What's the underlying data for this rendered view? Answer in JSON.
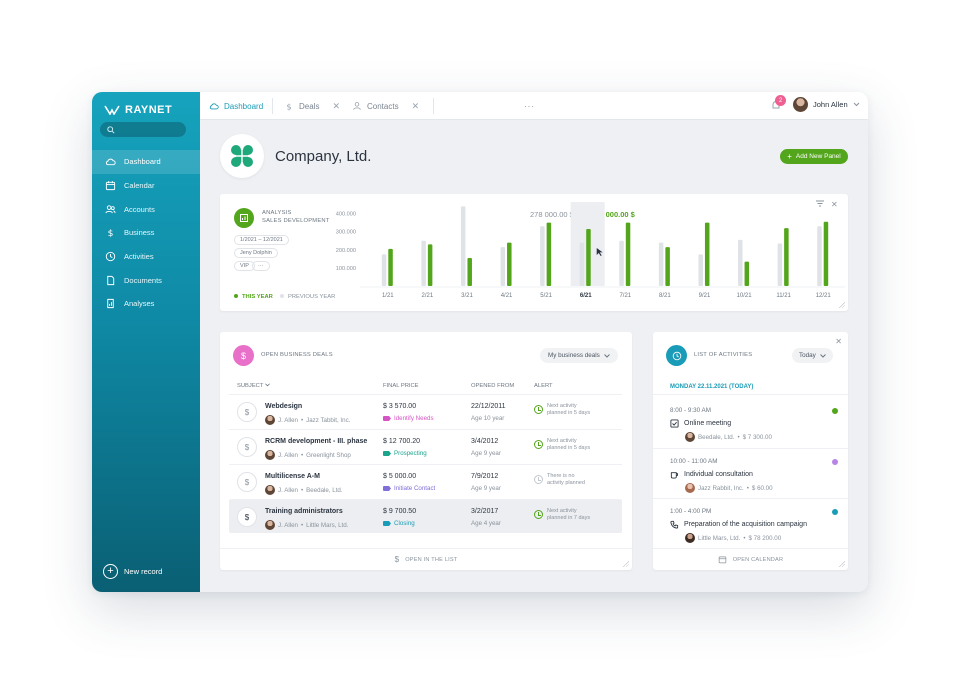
{
  "sidebar": {
    "brand": "RAYNET",
    "items": [
      {
        "label": "Dashboard",
        "icon": "cloud-icon",
        "active": true
      },
      {
        "label": "Calendar",
        "icon": "calendar-icon"
      },
      {
        "label": "Accounts",
        "icon": "users-icon"
      },
      {
        "label": "Business",
        "icon": "dollar-icon"
      },
      {
        "label": "Activities",
        "icon": "clock-icon"
      },
      {
        "label": "Documents",
        "icon": "document-icon"
      },
      {
        "label": "Analyses",
        "icon": "analyses-icon"
      }
    ],
    "new_record": "New record"
  },
  "topbar": {
    "tabs": [
      {
        "label": "Dashboard",
        "icon": "cloud-icon",
        "active": true
      },
      {
        "label": "Deals",
        "icon": "dollar-icon"
      },
      {
        "label": "Contacts",
        "icon": "user-icon"
      }
    ],
    "more": "···",
    "notifications_count": "2",
    "user_name": "John Allen"
  },
  "header": {
    "company_name": "Company, Ltd.",
    "add_panel_label": "Add New Panel"
  },
  "analysis": {
    "kicker": "ANALYSIS",
    "title": "SALES DEVELOPMENT",
    "filters": [
      "1/2021 – 12/2021",
      "Jeny Dolphin",
      "VIP",
      "···"
    ],
    "total_previous": "278 000.00 $",
    "total_current": "364 000.00 $",
    "legend_this_year": "THIS YEAR",
    "legend_previous_year": "PREVIOUS YEAR",
    "colors": {
      "this_year": "#53a51b",
      "previous_year": "#dfe2e6",
      "highlight": "#eceef1"
    }
  },
  "chart_data": {
    "type": "bar",
    "categories": [
      "1/21",
      "2/21",
      "3/21",
      "4/21",
      "5/21",
      "6/21",
      "7/21",
      "8/21",
      "9/21",
      "10/21",
      "11/21",
      "12/21"
    ],
    "series": [
      {
        "name": "PREVIOUS YEAR",
        "values": [
          175000,
          250000,
          440000,
          215000,
          330000,
          240000,
          250000,
          240000,
          175000,
          255000,
          235000,
          330000
        ]
      },
      {
        "name": "THIS YEAR",
        "values": [
          205000,
          230000,
          155000,
          240000,
          350000,
          315000,
          350000,
          215000,
          350000,
          135000,
          320000,
          355000
        ]
      }
    ],
    "yticks": [
      100000,
      200000,
      300000,
      400000
    ],
    "ytick_labels": [
      "100.000",
      "200.000",
      "300.000",
      "400.000"
    ],
    "ylim": [
      0,
      420000
    ],
    "highlighted_category": "6/21",
    "legend": "bottom-left",
    "grid": false
  },
  "deals": {
    "title": "OPEN BUSINESS DEALS",
    "filter": "My business deals",
    "columns": {
      "subject": "SUBJECT",
      "price": "FINAL PRICE",
      "opened": "OPENED FROM",
      "alert": "ALERT"
    },
    "rows": [
      {
        "name": "Webdesign",
        "owner": "J. Allen",
        "account": "Jazz Tabbit, Inc.",
        "price": "$ 3 570.00",
        "stage": "Identify Needs",
        "stage_color": "#d655c4",
        "date": "22/12/2011",
        "age": "Age 10 year",
        "alert_line1": "Next activity",
        "alert_line2": "planned in 5 days",
        "alert_status": "ok",
        "selected": false
      },
      {
        "name": "RCRM development - III. phase",
        "owner": "J. Allen",
        "account": "Greenlight Shop",
        "price": "$ 12 700.20",
        "stage": "Prospecting",
        "stage_color": "#1aa58c",
        "date": "3/4/2012",
        "age": "Age 9 year",
        "alert_line1": "Next activity",
        "alert_line2": "planned in 5 days",
        "alert_status": "ok",
        "selected": false
      },
      {
        "name": "Multilicense A-M",
        "owner": "J. Allen",
        "account": "Beedale, Ltd.",
        "price": "$ 5 000.00",
        "stage": "Initiate Contact",
        "stage_color": "#7f6fd8",
        "date": "7/9/2012",
        "age": "Age 9 year",
        "alert_line1": "There is no",
        "alert_line2": "activity planned",
        "alert_status": "none",
        "selected": false
      },
      {
        "name": "Training administrators",
        "owner": "J. Allen",
        "account": "Little Mars, Ltd.",
        "price": "$ 9 700.50",
        "stage": "Closing",
        "stage_color": "#1a9cb8",
        "date": "3/2/2017",
        "age": "Age 4 year",
        "alert_line1": "Next activity",
        "alert_line2": "planned in 7 days",
        "alert_status": "ok",
        "selected": true
      }
    ],
    "footer": "OPEN IN THE LIST"
  },
  "activities": {
    "title": "LIST OF ACTIVITIES",
    "filter": "Today",
    "date": "MONDAY 22.11.2021 (TODAY)",
    "items": [
      {
        "time": "8:00 - 9:30 AM",
        "title": "Online meeting",
        "icon": "checkbox-icon",
        "account": "Beedale, Ltd.",
        "amount": "$ 7 300.00",
        "color": "#53a51b"
      },
      {
        "time": "10:00 - 11:00 AM",
        "title": "Individual consultation",
        "icon": "cup-icon",
        "account": "Jazz Rabbit, Inc.",
        "amount": "$ 60.00",
        "color": "#b785e8"
      },
      {
        "time": "1:00 - 4:00 PM",
        "title": "Preparation of the acquisition campaign",
        "icon": "phone-icon",
        "account": "Little Mars, Ltd.",
        "amount": "$ 78 200.00",
        "color": "#1a9cb8"
      }
    ],
    "footer": "OPEN CALENDAR"
  }
}
